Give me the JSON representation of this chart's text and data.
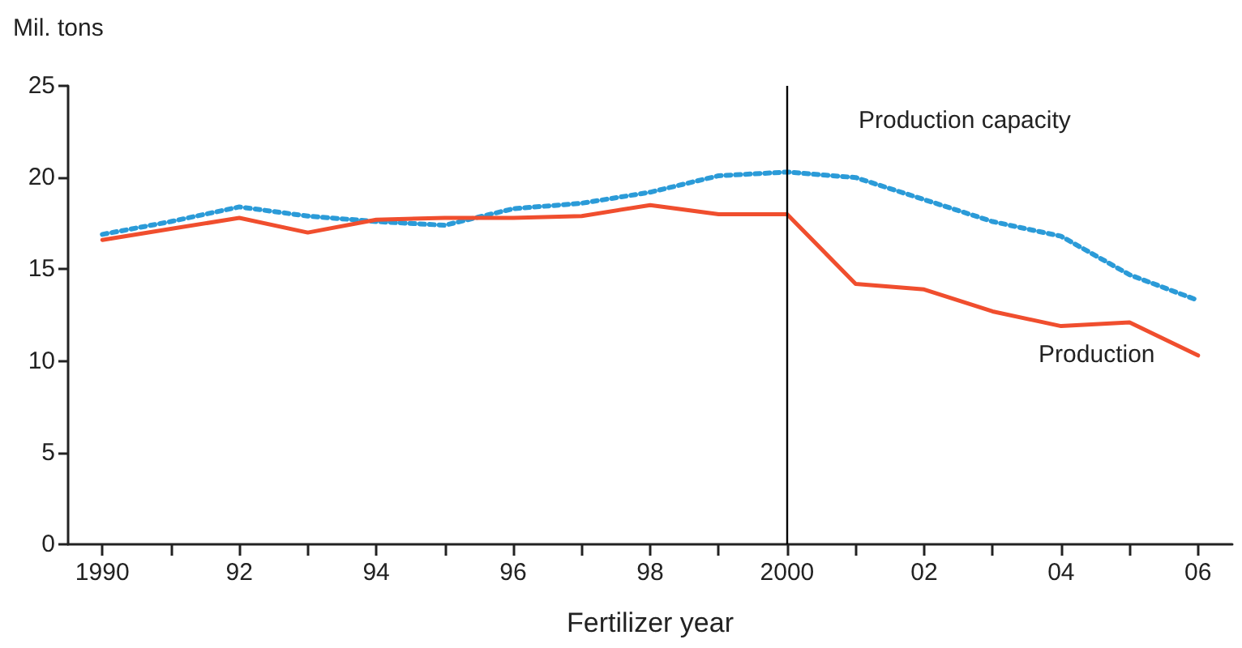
{
  "chart_data": {
    "type": "line",
    "ylabel": "Mil. tons",
    "xlabel": "Fertilizer year",
    "x": [
      1990,
      1991,
      1992,
      1993,
      1994,
      1995,
      1996,
      1997,
      1998,
      1999,
      2000,
      2001,
      2002,
      2003,
      2004,
      2005,
      2006
    ],
    "series": [
      {
        "name": "Production capacity",
        "color": "#2b9bd8",
        "line_style": "dotted",
        "values": [
          16.9,
          17.6,
          18.4,
          17.9,
          17.6,
          17.4,
          18.3,
          18.6,
          19.2,
          20.1,
          20.3,
          20.0,
          18.8,
          17.6,
          16.8,
          14.7,
          13.3
        ]
      },
      {
        "name": "Production",
        "color": "#f04e2e",
        "line_style": "solid",
        "values": [
          16.6,
          17.2,
          17.8,
          17.0,
          17.7,
          17.8,
          17.8,
          17.9,
          18.5,
          18.0,
          18.0,
          14.2,
          13.9,
          12.7,
          11.9,
          12.1,
          10.3
        ]
      }
    ],
    "xlim": [
      1989.5,
      2006.5
    ],
    "xticks": [
      {
        "value": 1990,
        "label": "1990"
      },
      {
        "value": 1991,
        "label": null
      },
      {
        "value": 1992,
        "label": "92"
      },
      {
        "value": 1993,
        "label": null
      },
      {
        "value": 1994,
        "label": "94"
      },
      {
        "value": 1995,
        "label": null
      },
      {
        "value": 1996,
        "label": "96"
      },
      {
        "value": 1997,
        "label": null
      },
      {
        "value": 1998,
        "label": "98"
      },
      {
        "value": 1999,
        "label": null
      },
      {
        "value": 2000,
        "label": "2000"
      },
      {
        "value": 2001,
        "label": null
      },
      {
        "value": 2002,
        "label": "02"
      },
      {
        "value": 2003,
        "label": null
      },
      {
        "value": 2004,
        "label": "04"
      },
      {
        "value": 2005,
        "label": null
      },
      {
        "value": 2006,
        "label": "06"
      }
    ],
    "ylim": [
      0,
      25
    ],
    "yticks": [
      0,
      5,
      10,
      15,
      20,
      25
    ],
    "ref_lines": [
      {
        "axis": "x",
        "value": 2000,
        "label": null,
        "color": "#000000"
      }
    ],
    "grid": false,
    "legend": false,
    "marker": "none"
  }
}
